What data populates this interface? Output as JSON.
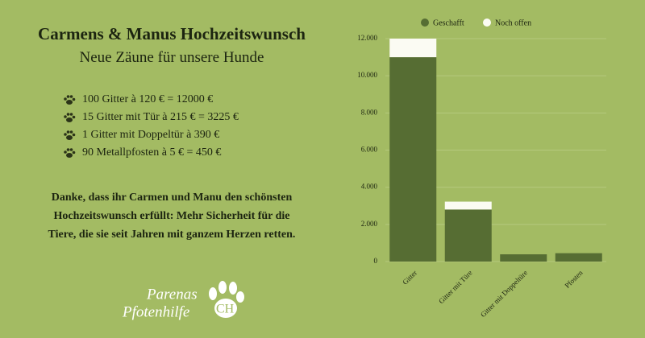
{
  "header": {
    "title": "Carmens & Manus Hochzeitswunsch",
    "subtitle": "Neue Zäune für unsere Hunde"
  },
  "items": [
    "100 Gitter à 120 € = 12000 €",
    "15 Gitter mit Tür à 215 € = 3225 €",
    "1 Gitter mit Doppeltür à 390 €",
    "90 Metallpfosten à 5 € = 450 €"
  ],
  "message": "Danke, dass ihr Carmen und Manu den schönsten Hochzeitswunsch erfüllt: Mehr Sicherheit für die Tiere, die sie seit Jahren mit ganzem Herzen retten.",
  "logo": {
    "line1": "Parenas",
    "line2": "Pfotenhilfe",
    "suffix": "CH"
  },
  "chart_data": {
    "type": "stacked_bar",
    "categories": [
      "Gitter",
      "Gitter mit Türe",
      "Gitter mit Doppeltüre",
      "Pfosten"
    ],
    "series": [
      {
        "name": "Geschafft",
        "color": "#566d33",
        "values": [
          11000,
          2800,
          390,
          450
        ]
      },
      {
        "name": "Noch offen",
        "color": "#fbfbf3",
        "values": [
          1000,
          425,
          0,
          0
        ]
      }
    ],
    "ylim": [
      0,
      12000
    ],
    "yticks": [
      0,
      {
        "value": 2000,
        "label": "2.000"
      },
      {
        "value": 4000,
        "label": "4.000"
      },
      {
        "value": 6000,
        "label": "6.000"
      },
      {
        "value": 8000,
        "label": "8.000"
      },
      {
        "value": 10000,
        "label": "10.000"
      },
      {
        "value": 12000,
        "label": "12.000"
      }
    ],
    "grid": true,
    "legend": "top"
  }
}
